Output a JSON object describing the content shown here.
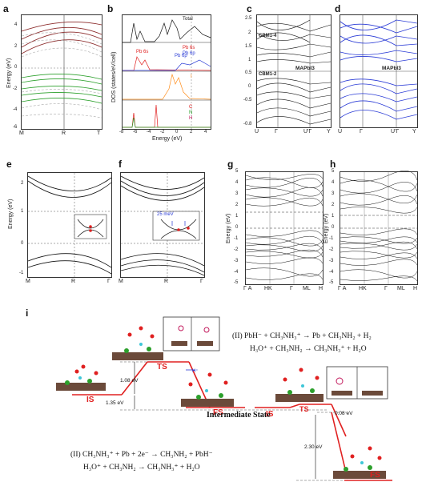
{
  "panels": {
    "a": {
      "label": "a",
      "ylabel": "Energy (eV)",
      "yticks": [
        "4",
        "2",
        "0",
        "-2",
        "-4",
        "-6"
      ],
      "xticks": [
        "M",
        "R",
        "T"
      ]
    },
    "b": {
      "label": "b",
      "ylabel": "DOS (states/eV/cell)",
      "xlabel": "Energy (eV)",
      "xticks": [
        "-8",
        "-6",
        "-4",
        "-2",
        "0",
        "2",
        "4"
      ],
      "legends": [
        "Total",
        "Pb 6s",
        "Pb 6p",
        "I",
        "C",
        "N",
        "H"
      ],
      "annotations": [
        "Pb 6s",
        "Pb 6p"
      ]
    },
    "c": {
      "label": "c",
      "yticks": [
        "2.5",
        "2",
        "1.5",
        "1",
        "0.5",
        "0",
        "-0.5",
        "-0.8"
      ],
      "xticks": [
        "U",
        "Γ",
        "U'Γ",
        "Y"
      ],
      "title": "MAPbI3",
      "tags": [
        "CBM1-4",
        "CBM1-2"
      ]
    },
    "d": {
      "label": "d",
      "xticks": [
        "U",
        "Γ",
        "U'Γ",
        "Y"
      ],
      "title": "MAPbI3"
    },
    "e": {
      "label": "e",
      "ylabel": "Energy (eV)",
      "yticks": [
        "2",
        "1",
        "0",
        "-1"
      ],
      "xticks": [
        "M",
        "R",
        "Γ"
      ]
    },
    "f": {
      "label": "f",
      "xticks": [
        "M",
        "R",
        "Γ"
      ],
      "inset": "25 meV"
    },
    "g": {
      "label": "g",
      "ylabel": "Energy (eV)",
      "yticks": [
        "5",
        "4",
        "3",
        "2",
        "1",
        "0",
        "-1",
        "-2",
        "-3",
        "-4",
        "-5"
      ],
      "xticks": [
        "Γ A",
        "HK",
        "Γ",
        "ML",
        "H"
      ]
    },
    "h": {
      "label": "h",
      "ylabel": "Energy (eV)",
      "yticks": [
        "5",
        "4",
        "3",
        "2",
        "1",
        "0",
        "-1",
        "-2",
        "-3",
        "-4",
        "-5"
      ],
      "xticks": [
        "Γ A",
        "HK",
        "Γ",
        "ML",
        "H"
      ]
    },
    "i": {
      "label": "i"
    }
  },
  "reaction": {
    "states": [
      "IS",
      "TS",
      "FS",
      "IS",
      "TS",
      "FS"
    ],
    "energies": [
      "1.08 eV",
      "1.35 eV",
      "0.08 eV",
      "2.30 eV"
    ],
    "intermediate": "Intermediate State",
    "eq_top_1": "(II) PbH⁻ + CH₃NH₃⁺ → Pb + CH₃NH₂ + H₂",
    "eq_top_2": "H₃O⁺ + CH₃NH₂ → CH₃NH₃⁺ + H₂O",
    "eq_bot_1": "(II) CH₃NH₃⁺ + Pb + 2e⁻ → CH₃NH₂ + PbH⁻",
    "eq_bot_2": "H₃O⁺ + CH₃NH₂ → CH₃NH₃⁺ + H₂O",
    "hplus": "H⁺"
  },
  "colors": {
    "red": "#e02020",
    "green": "#2ca02c",
    "blue": "#2a3bd6",
    "orange": "#ff8c1a",
    "brown": "#8b2a2a"
  }
}
